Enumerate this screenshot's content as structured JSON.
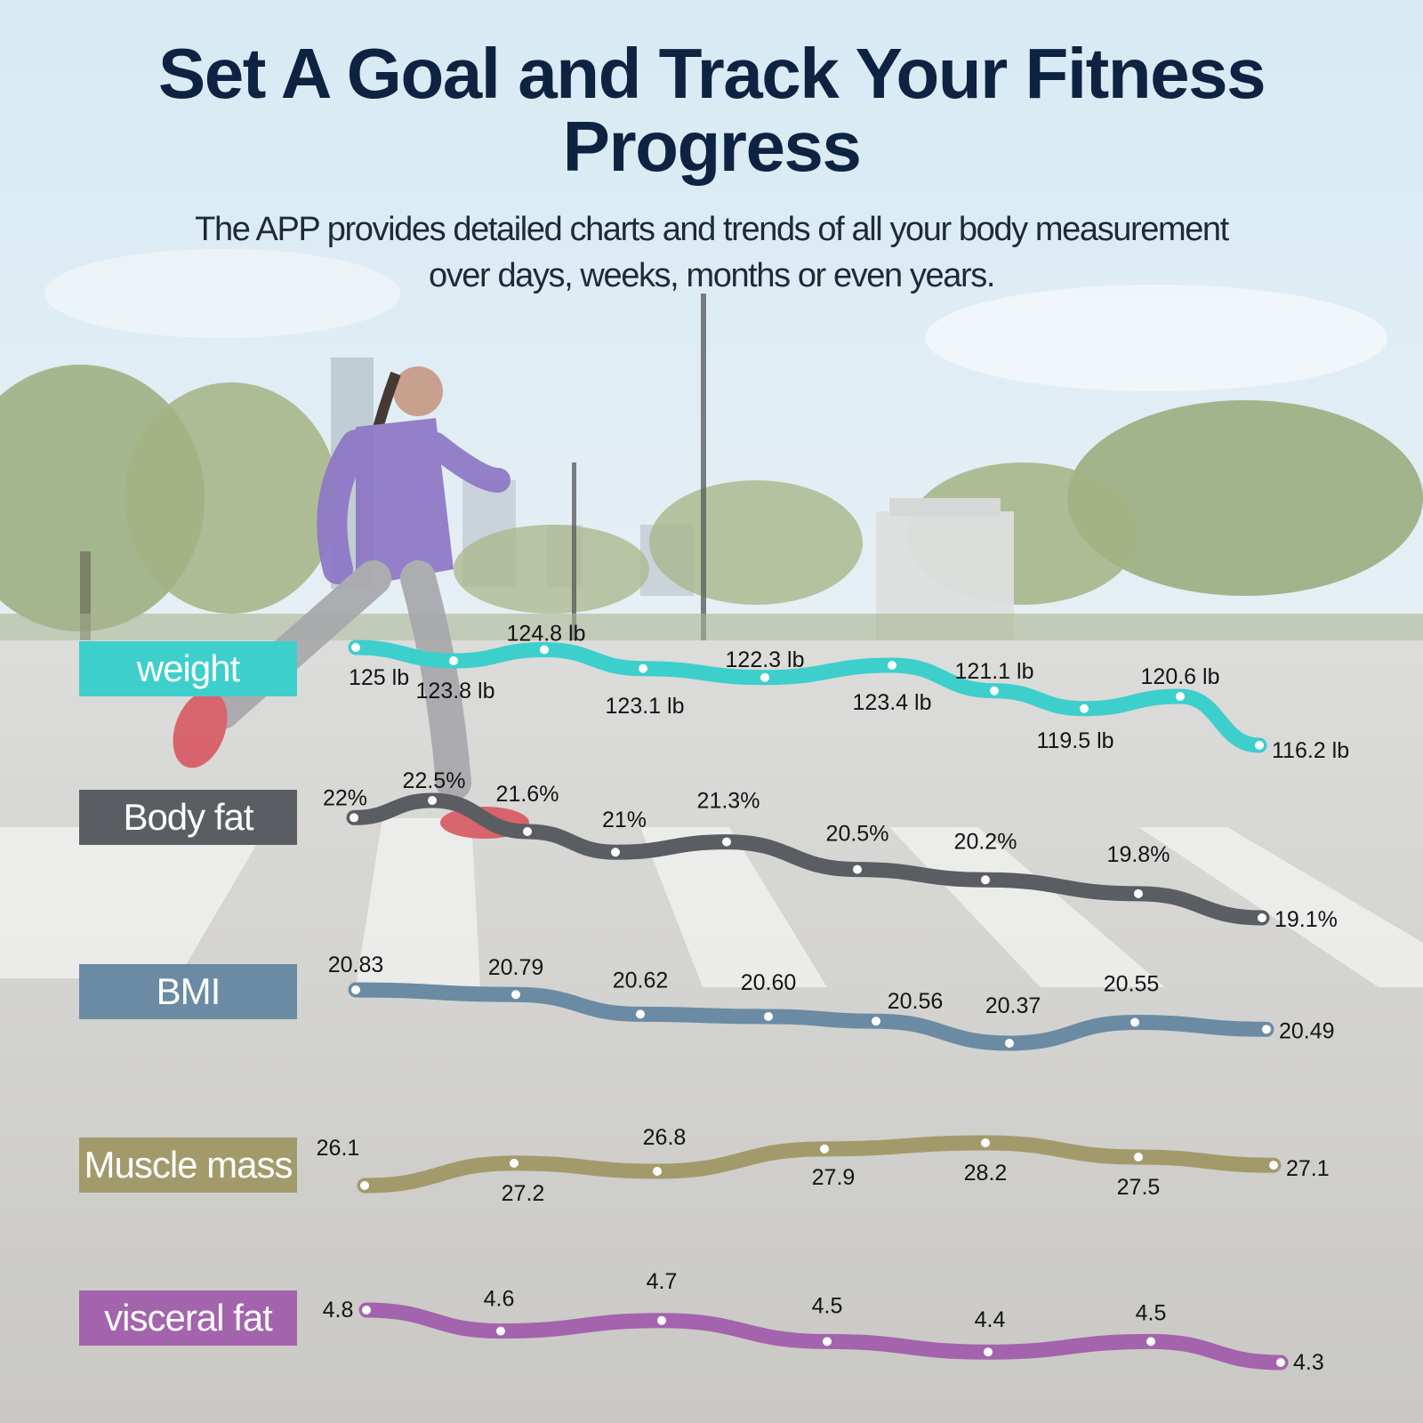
{
  "header": {
    "title_line1": "Set A Goal and Track Your Fitness",
    "title_line2": "Progress",
    "subtitle_line1": "The APP provides detailed charts and trends of all your body measurement",
    "subtitle_line2": "over days, weeks, months or even years."
  },
  "chart_data": [
    {
      "type": "line",
      "name": "weight",
      "color": "#3ccfcc",
      "labels": [
        "125 lb",
        "123.8 lb",
        "124.8 lb",
        "123.1 lb",
        "122.3 lb",
        "123.4 lb",
        "121.1 lb",
        "119.5 lb",
        "120.6 lb",
        "116.2 lb"
      ],
      "values": [
        125,
        123.8,
        124.8,
        123.1,
        122.3,
        123.4,
        121.1,
        119.5,
        120.6,
        116.2
      ]
    },
    {
      "type": "line",
      "name": "Body fat",
      "color": "#5a5e63",
      "labels": [
        "22%",
        "22.5%",
        "21.6%",
        "21%",
        "21.3%",
        "20.5%",
        "20.2%",
        "19.8%",
        "19.1%"
      ],
      "values": [
        22,
        22.5,
        21.6,
        21,
        21.3,
        20.5,
        20.2,
        19.8,
        19.1
      ]
    },
    {
      "type": "line",
      "name": "BMI",
      "color": "#6a8ba3",
      "labels": [
        "20.83",
        "20.79",
        "20.62",
        "20.60",
        "20.56",
        "20.37",
        "20.55",
        "20.49"
      ],
      "values": [
        20.83,
        20.79,
        20.62,
        20.6,
        20.56,
        20.37,
        20.55,
        20.49
      ]
    },
    {
      "type": "line",
      "name": "Muscle mass",
      "color": "#a39a6c",
      "labels": [
        "26.1",
        "27.2",
        "26.8",
        "27.9",
        "28.2",
        "27.5",
        "27.1"
      ],
      "values": [
        26.1,
        27.2,
        26.8,
        27.9,
        28.2,
        27.5,
        27.1
      ]
    },
    {
      "type": "line",
      "name": "visceral fat",
      "color": "#a463ad",
      "labels": [
        "4.8",
        "4.6",
        "4.7",
        "4.5",
        "4.4",
        "4.5",
        "4.3"
      ],
      "values": [
        4.8,
        4.6,
        4.7,
        4.5,
        4.4,
        4.5,
        4.3
      ]
    }
  ]
}
